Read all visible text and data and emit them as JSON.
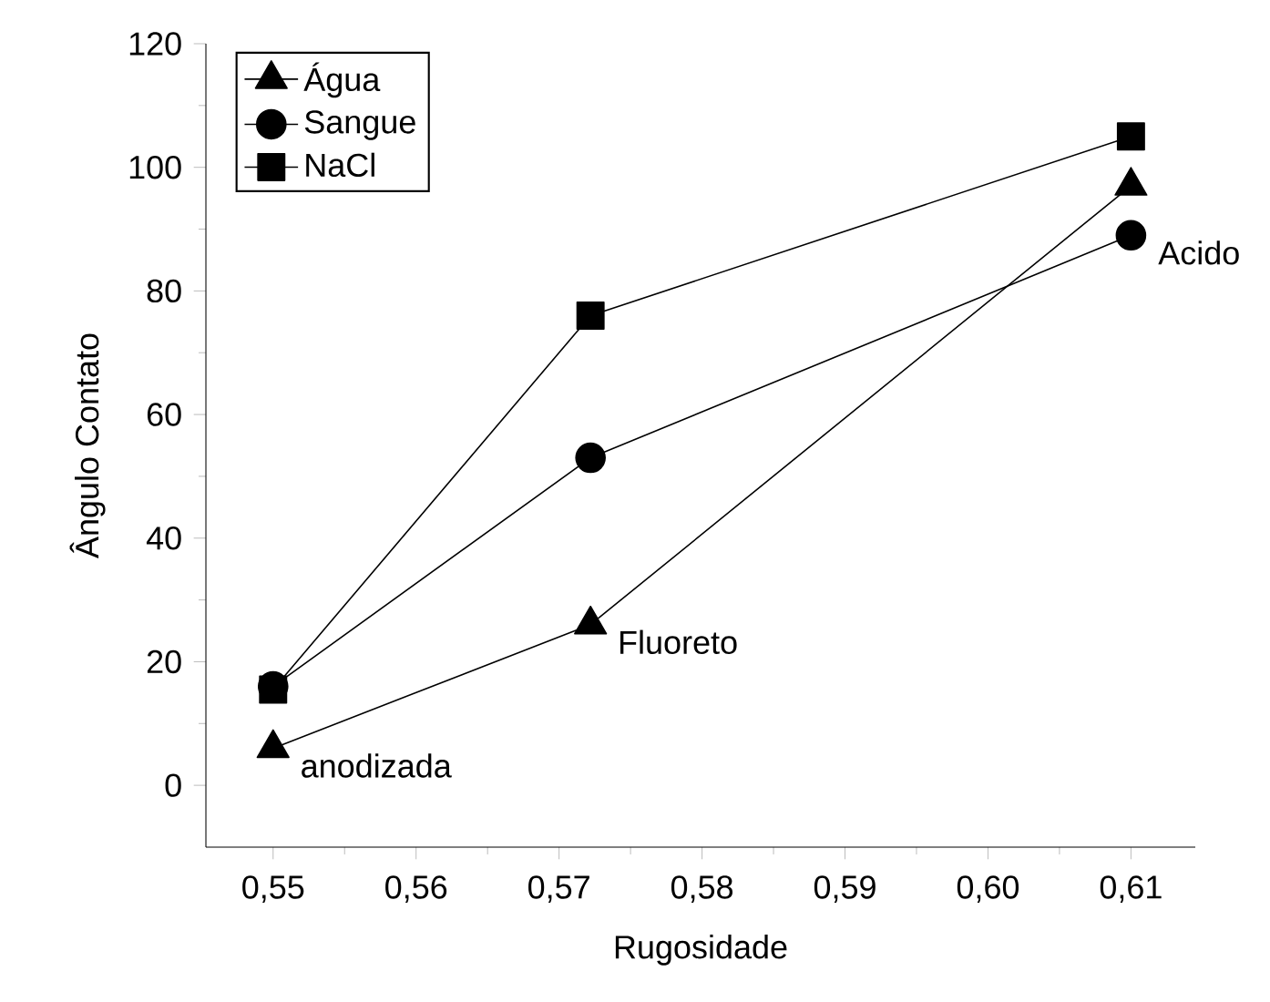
{
  "chart_data": {
    "type": "line",
    "xlabel": "Rugosidade",
    "ylabel": "Ângulo Contato",
    "x": [
      0.55,
      0.5722,
      0.61
    ],
    "series": [
      {
        "name": "Água",
        "color": "#000000",
        "marker": "triangle",
        "values": [
          6,
          26,
          97
        ]
      },
      {
        "name": "Sangue",
        "color": "#000000",
        "marker": "circle",
        "values": [
          16,
          53,
          89
        ]
      },
      {
        "name": "NaCl",
        "color": "#000000",
        "marker": "square",
        "values": [
          15.5,
          76,
          105
        ]
      }
    ],
    "xlim": [
      0.5453,
      0.6145
    ],
    "ylim": [
      -10,
      120
    ],
    "xticks": [
      {
        "value": 0.55,
        "label": "0,55"
      },
      {
        "value": 0.56,
        "label": "0,56"
      },
      {
        "value": 0.57,
        "label": "0,57"
      },
      {
        "value": 0.58,
        "label": "0,58"
      },
      {
        "value": 0.59,
        "label": "0,59"
      },
      {
        "value": 0.6,
        "label": "0,60"
      },
      {
        "value": 0.61,
        "label": "0,61"
      }
    ],
    "yticks": [
      0,
      20,
      40,
      60,
      80,
      100,
      120
    ],
    "legend": "top left",
    "grid": false,
    "line_style": "solid",
    "annotations": [
      {
        "text": "anodizada",
        "x": 0.55,
        "y": 6
      },
      {
        "text": "Fluoreto",
        "x": 0.5722,
        "y": 26
      },
      {
        "text": "Acido",
        "x": 0.61,
        "y": 89
      }
    ]
  }
}
